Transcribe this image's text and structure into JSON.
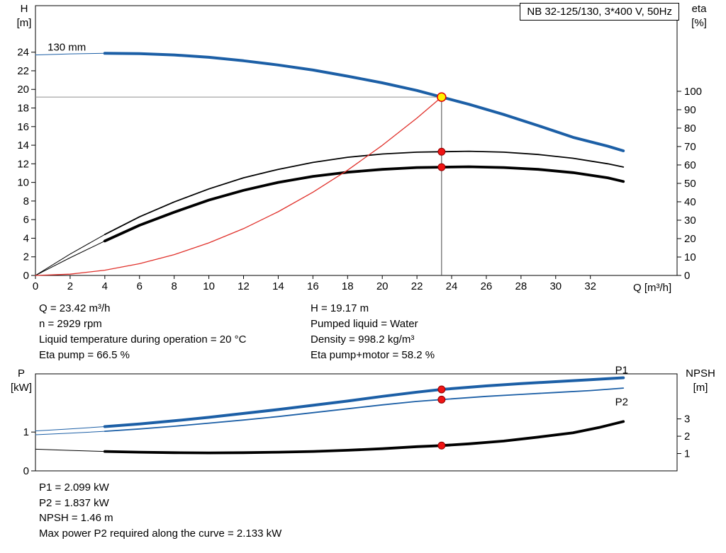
{
  "title_box": {
    "text": "NB 32-125/130, 3*400 V, 50Hz"
  },
  "axis_labels": {
    "hq_left": "H\n[m]",
    "hq_right": "eta\n[%]",
    "hq_x": "Q [m³/h]",
    "p_left": "P\n[kW]",
    "p_right": "NPSH\n[m]"
  },
  "info_top": {
    "left": [
      "Q = 23.42 m³/h",
      "n = 2929 rpm",
      "Liquid temperature during operation = 20 °C",
      "Eta pump = 66.5 %"
    ],
    "right": [
      "H = 19.17 m",
      "Pumped liquid = Water",
      "Density = 998.2 kg/m³",
      "Eta pump+motor = 58.2 %"
    ]
  },
  "info_bottom": {
    "lines": [
      "P1 = 2.099 kW",
      "P2 = 1.837 kW",
      "NPSH = 1.46 m",
      "Max power P2 required along the curve = 2.133 kW"
    ]
  },
  "colors": {
    "curve_blue": "#1c5fa6",
    "curve_black": "#000000",
    "curve_red": "#e0312b",
    "marker_fill": "#f01414",
    "marker_stroke": "#8f0000",
    "duty_fill": "#fff200",
    "duty_stroke": "#e00000",
    "crosshair_h": "#8f8f8f",
    "crosshair_v": "#444444",
    "axis": "#000000"
  },
  "chart_data": [
    {
      "id": "hq-chart",
      "type": "line",
      "title": "NB 32-125/130, 3*400 V, 50Hz",
      "xlabel": "Q [m³/h]",
      "ylabel_left": "H [m]",
      "ylabel_right": "eta [%]",
      "x_max": 37,
      "y_left_max": 29,
      "y_right_max": 146.5,
      "x_ticks": [
        0,
        2,
        4,
        6,
        8,
        10,
        12,
        14,
        16,
        18,
        20,
        22,
        24,
        26,
        28,
        30,
        32
      ],
      "show_x_tick_labels": true,
      "y_left_ticks": [
        0,
        2,
        4,
        6,
        8,
        10,
        12,
        14,
        16,
        18,
        20,
        22,
        24
      ],
      "y_right_ticks": [
        0,
        10,
        20,
        30,
        40,
        50,
        60,
        70,
        80,
        90,
        100
      ],
      "series": [
        {
          "name": "pump-curve-130mm",
          "label": "130 mm",
          "label_at": [
            0.7,
            24.15
          ],
          "label_offset": [
            0,
            0
          ],
          "label_color": "#000000",
          "axis": "left",
          "color": "#1c5fa6",
          "width": 4,
          "thin_until": 4,
          "points": [
            [
              0,
              23.7
            ],
            [
              2,
              23.82
            ],
            [
              4,
              23.88
            ],
            [
              6,
              23.85
            ],
            [
              8,
              23.7
            ],
            [
              10,
              23.45
            ],
            [
              12,
              23.08
            ],
            [
              14,
              22.62
            ],
            [
              16,
              22.08
            ],
            [
              18,
              21.42
            ],
            [
              20,
              20.7
            ],
            [
              22,
              19.88
            ],
            [
              23.42,
              19.17
            ],
            [
              25,
              18.4
            ],
            [
              27,
              17.3
            ],
            [
              29,
              16.1
            ],
            [
              31,
              14.85
            ],
            [
              33,
              13.9
            ],
            [
              33.9,
              13.4
            ]
          ]
        },
        {
          "name": "eta-pump-curve",
          "axis": "left",
          "color": "#000000",
          "width": 1.8,
          "thin_until": 4,
          "points": [
            [
              0,
              0
            ],
            [
              2,
              2.3
            ],
            [
              4,
              4.4
            ],
            [
              6,
              6.3
            ],
            [
              8,
              7.9
            ],
            [
              10,
              9.3
            ],
            [
              12,
              10.5
            ],
            [
              14,
              11.4
            ],
            [
              16,
              12.15
            ],
            [
              18,
              12.7
            ],
            [
              20,
              13.05
            ],
            [
              22,
              13.25
            ],
            [
              23.42,
              13.3
            ],
            [
              25,
              13.35
            ],
            [
              27,
              13.25
            ],
            [
              29,
              13.0
            ],
            [
              31,
              12.6
            ],
            [
              33,
              12.0
            ],
            [
              33.9,
              11.65
            ]
          ]
        },
        {
          "name": "eta-pump-motor-curve",
          "axis": "left",
          "color": "#000000",
          "width": 3.8,
          "thin_until": 4,
          "points": [
            [
              0,
              0
            ],
            [
              2,
              1.9
            ],
            [
              4,
              3.7
            ],
            [
              6,
              5.4
            ],
            [
              8,
              6.8
            ],
            [
              10,
              8.1
            ],
            [
              12,
              9.15
            ],
            [
              14,
              10.0
            ],
            [
              16,
              10.65
            ],
            [
              18,
              11.1
            ],
            [
              20,
              11.4
            ],
            [
              22,
              11.6
            ],
            [
              23.42,
              11.64
            ],
            [
              25,
              11.68
            ],
            [
              27,
              11.6
            ],
            [
              29,
              11.4
            ],
            [
              31,
              11.05
            ],
            [
              33,
              10.5
            ],
            [
              33.9,
              10.1
            ]
          ]
        },
        {
          "name": "system-curve",
          "axis": "left",
          "color": "#e0312b",
          "width": 1.3,
          "points": [
            [
              0,
              0
            ],
            [
              2,
              0.14
            ],
            [
              4,
              0.56
            ],
            [
              6,
              1.26
            ],
            [
              8,
              2.24
            ],
            [
              10,
              3.5
            ],
            [
              12,
              5.03
            ],
            [
              14,
              6.85
            ],
            [
              16,
              8.95
            ],
            [
              18,
              11.32
            ],
            [
              20,
              13.98
            ],
            [
              22,
              16.92
            ],
            [
              23.42,
              19.17
            ]
          ]
        }
      ],
      "crosshair": {
        "x": 23.42,
        "y": 19.17
      },
      "duty_point": {
        "x": 23.42,
        "y": 19.17
      },
      "markers": [
        {
          "x": 23.42,
          "y": 13.3,
          "axis": "left"
        },
        {
          "x": 23.42,
          "y": 11.64,
          "axis": "left"
        }
      ]
    },
    {
      "id": "power-chart",
      "type": "line",
      "ylabel_left": "P [kW]",
      "ylabel_right": "NPSH [m]",
      "x_max": 37,
      "y_left_max": 2.5,
      "y_right_max": 5.6,
      "x_ticks": [],
      "show_x_tick_labels": false,
      "y_left_ticks": [
        0,
        1
      ],
      "y_right_ticks": [
        1,
        2,
        3
      ],
      "series": [
        {
          "name": "p1-curve",
          "label": "P1",
          "label_at": [
            33.1,
            2.42
          ],
          "label_offset": [
            8,
            -5
          ],
          "label_color": "#1c5fa6",
          "axis": "left",
          "color": "#1c5fa6",
          "width": 4,
          "thin_until": 4,
          "points": [
            [
              0,
              1.03
            ],
            [
              2,
              1.08
            ],
            [
              4,
              1.14
            ],
            [
              6,
              1.21
            ],
            [
              8,
              1.29
            ],
            [
              10,
              1.38
            ],
            [
              12,
              1.48
            ],
            [
              14,
              1.58
            ],
            [
              16,
              1.69
            ],
            [
              18,
              1.8
            ],
            [
              20,
              1.92
            ],
            [
              22,
              2.03
            ],
            [
              23.42,
              2.099
            ],
            [
              26,
              2.19
            ],
            [
              28,
              2.25
            ],
            [
              30,
              2.3
            ],
            [
              32,
              2.35
            ],
            [
              33.9,
              2.4
            ]
          ]
        },
        {
          "name": "p2-curve",
          "label": "P2",
          "label_at": [
            33.1,
            2.13
          ],
          "label_offset": [
            8,
            24
          ],
          "label_color": "#1c5fa6",
          "axis": "left",
          "color": "#1c5fa6",
          "width": 1.8,
          "thin_until": 4,
          "points": [
            [
              0,
              0.93
            ],
            [
              2,
              0.97
            ],
            [
              4,
              1.02
            ],
            [
              6,
              1.08
            ],
            [
              8,
              1.15
            ],
            [
              10,
              1.23
            ],
            [
              12,
              1.31
            ],
            [
              14,
              1.4
            ],
            [
              16,
              1.5
            ],
            [
              18,
              1.6
            ],
            [
              20,
              1.7
            ],
            [
              22,
              1.79
            ],
            [
              23.42,
              1.837
            ],
            [
              26,
              1.92
            ],
            [
              28,
              1.97
            ],
            [
              30,
              2.02
            ],
            [
              32,
              2.07
            ],
            [
              33.9,
              2.133
            ]
          ]
        },
        {
          "name": "npsh-curve",
          "axis": "right",
          "color": "#000000",
          "width": 3.8,
          "thin_until": 4,
          "points": [
            [
              0,
              1.25
            ],
            [
              2,
              1.18
            ],
            [
              4,
              1.12
            ],
            [
              6,
              1.08
            ],
            [
              8,
              1.05
            ],
            [
              10,
              1.04
            ],
            [
              12,
              1.05
            ],
            [
              14,
              1.08
            ],
            [
              16,
              1.12
            ],
            [
              18,
              1.19
            ],
            [
              20,
              1.28
            ],
            [
              22,
              1.4
            ],
            [
              23.42,
              1.46
            ],
            [
              25,
              1.56
            ],
            [
              27,
              1.72
            ],
            [
              29,
              1.95
            ],
            [
              31,
              2.2
            ],
            [
              32.5,
              2.5
            ],
            [
              33.9,
              2.85
            ]
          ]
        }
      ],
      "markers": [
        {
          "x": 23.42,
          "y": 2.099,
          "axis": "left"
        },
        {
          "x": 23.42,
          "y": 1.837,
          "axis": "left"
        },
        {
          "x": 23.42,
          "y": 1.46,
          "axis": "right"
        }
      ]
    }
  ]
}
